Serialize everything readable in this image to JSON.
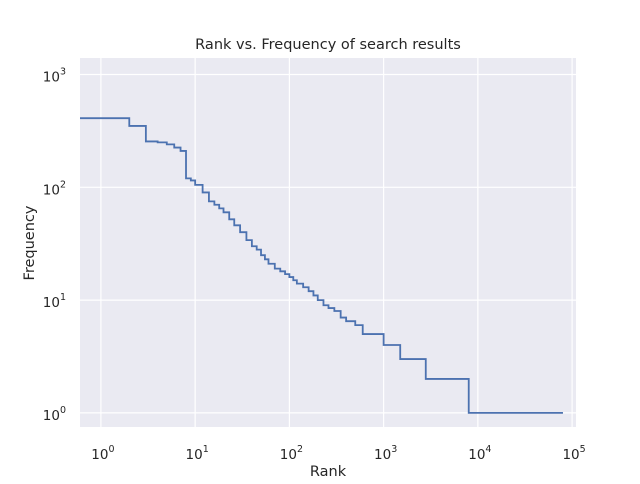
{
  "chart_data": {
    "type": "line",
    "title": "Rank vs. Frequency of search results",
    "xlabel": "Rank",
    "ylabel": "Frequency",
    "xscale": "log",
    "yscale": "log",
    "xlim": [
      0.6,
      110000
    ],
    "ylim": [
      0.75,
      1400
    ],
    "grid": true,
    "drawstyle": "steps-post",
    "colors": {
      "background": "#EAEAF2",
      "grid": "#FFFFFF",
      "line": "#4C72B0"
    },
    "x_ticks": [
      {
        "value": 1,
        "base": "10",
        "exp": "0"
      },
      {
        "value": 10,
        "base": "10",
        "exp": "1"
      },
      {
        "value": 100,
        "base": "10",
        "exp": "2"
      },
      {
        "value": 1000,
        "base": "10",
        "exp": "3"
      },
      {
        "value": 10000,
        "base": "10",
        "exp": "4"
      },
      {
        "value": 100000,
        "base": "10",
        "exp": "5"
      }
    ],
    "y_ticks": [
      {
        "value": 1,
        "base": "10",
        "exp": "0"
      },
      {
        "value": 10,
        "base": "10",
        "exp": "1"
      },
      {
        "value": 100,
        "base": "10",
        "exp": "2"
      },
      {
        "value": 1000,
        "base": "10",
        "exp": "3"
      }
    ],
    "series": [
      {
        "x": [
          0.6,
          1,
          2,
          3,
          4,
          5,
          6,
          7,
          8,
          9,
          10,
          12,
          14,
          16,
          18,
          20,
          23,
          26,
          30,
          35,
          40,
          45,
          50,
          55,
          60,
          70,
          80,
          90,
          100,
          110,
          120,
          140,
          160,
          180,
          200,
          230,
          260,
          300,
          350,
          400,
          500,
          600,
          750,
          1000,
          1500,
          2800,
          8000,
          80000
        ],
        "y": [
          410,
          410,
          350,
          255,
          250,
          240,
          225,
          210,
          120,
          115,
          105,
          90,
          75,
          70,
          65,
          60,
          52,
          46,
          40,
          34,
          30,
          28,
          25,
          23,
          21,
          19,
          18,
          17,
          16,
          15,
          14,
          13,
          12,
          11,
          10,
          9,
          8.5,
          8,
          7,
          6.5,
          6,
          5,
          5,
          4,
          3,
          2,
          1,
          1
        ]
      }
    ]
  }
}
